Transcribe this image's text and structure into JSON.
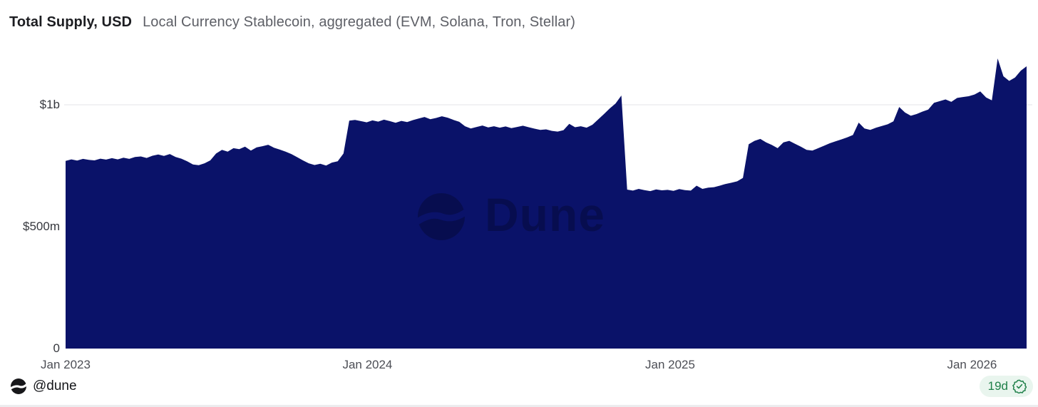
{
  "header": {
    "title": "Total Supply, USD",
    "subtitle": "Local Currency Stablecoin, aggregated (EVM, Solana, Tron, Stellar)"
  },
  "watermark": {
    "text": "Dune"
  },
  "footer": {
    "handle": "@dune",
    "freshness_badge": "19d"
  },
  "chart_data": {
    "type": "area",
    "title": "Total Supply, USD",
    "subtitle": "Local Currency Stablecoin, aggregated (EVM, Solana, Tron, Stellar)",
    "unit": "USD millions",
    "x_start_date": "2023-01-01",
    "x_interval_days": 7,
    "ylim": [
      0,
      1240
    ],
    "grid": "single horizontal gridline at $1b",
    "legend": "none",
    "yticks": [
      {
        "value": 1000,
        "label": "$1b"
      },
      {
        "value": 500,
        "label": "$500m"
      },
      {
        "value": 0,
        "label": "0"
      }
    ],
    "xticks": [
      {
        "date": "2023-01-01",
        "label": "Jan 2023"
      },
      {
        "date": "2024-01-01",
        "label": "Jan 2024"
      },
      {
        "date": "2025-01-01",
        "label": "Jan 2025"
      },
      {
        "date": "2026-01-01",
        "label": "Jan 2026"
      }
    ],
    "colors": {
      "area_fill": "#0a1269",
      "grid_line": "#e4e5e8",
      "badge_green": "#1f8049",
      "badge_bg": "#e9f5ee"
    },
    "values_millions": [
      770,
      776,
      771,
      778,
      774,
      772,
      779,
      775,
      781,
      776,
      783,
      778,
      786,
      788,
      782,
      791,
      796,
      790,
      798,
      786,
      779,
      768,
      755,
      752,
      760,
      772,
      800,
      815,
      808,
      822,
      818,
      828,
      812,
      825,
      830,
      836,
      824,
      816,
      808,
      798,
      785,
      772,
      760,
      753,
      758,
      751,
      763,
      768,
      800,
      935,
      938,
      933,
      928,
      936,
      931,
      939,
      933,
      926,
      934,
      929,
      937,
      944,
      950,
      941,
      946,
      953,
      947,
      938,
      930,
      912,
      903,
      909,
      915,
      907,
      912,
      906,
      911,
      904,
      909,
      914,
      908,
      902,
      897,
      899,
      893,
      890,
      896,
      922,
      908,
      912,
      906,
      918,
      940,
      962,
      985,
      1005,
      1038,
      652,
      648,
      655,
      650,
      646,
      653,
      649,
      651,
      647,
      654,
      650,
      648,
      668,
      655,
      660,
      662,
      668,
      675,
      680,
      686,
      700,
      838,
      852,
      860,
      846,
      835,
      822,
      846,
      852,
      840,
      828,
      815,
      812,
      822,
      832,
      842,
      850,
      858,
      866,
      876,
      927,
      903,
      897,
      906,
      913,
      920,
      932,
      991,
      968,
      955,
      962,
      972,
      980,
      1008,
      1015,
      1022,
      1012,
      1028,
      1032,
      1035,
      1042,
      1055,
      1030,
      1018,
      1190,
      1117,
      1098,
      1112,
      1140,
      1158
    ]
  }
}
